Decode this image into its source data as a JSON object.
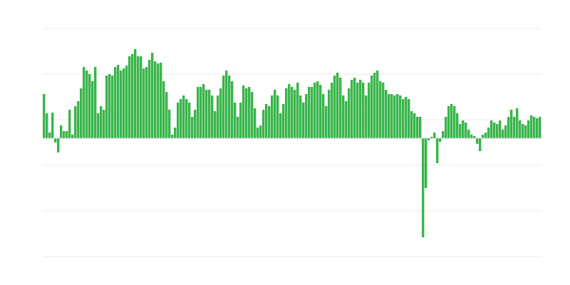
{
  "chart_data": {
    "type": "bar",
    "title": "",
    "xlabel": "",
    "ylabel": "",
    "ylim": [
      -166,
      154
    ],
    "gridlines": [
      -166,
      -102,
      -38,
      26,
      90,
      154
    ],
    "grid": true,
    "legend": "none",
    "colors": {
      "bar": "#39b54a",
      "grid": "#ebebeb",
      "baseline": "#cccccc"
    },
    "values": [
      62,
      35,
      8,
      36,
      -6,
      -20,
      18,
      10,
      10,
      40,
      5,
      45,
      52,
      70,
      100,
      95,
      90,
      80,
      100,
      35,
      45,
      40,
      88,
      90,
      88,
      100,
      103,
      95,
      98,
      102,
      115,
      118,
      125,
      115,
      115,
      98,
      100,
      110,
      120,
      108,
      105,
      106,
      80,
      65,
      40,
      5,
      15,
      50,
      55,
      60,
      55,
      50,
      30,
      40,
      72,
      72,
      76,
      68,
      68,
      60,
      38,
      60,
      70,
      88,
      95,
      88,
      80,
      50,
      30,
      50,
      74,
      70,
      72,
      65,
      42,
      15,
      18,
      40,
      48,
      45,
      60,
      68,
      60,
      35,
      48,
      70,
      76,
      72,
      68,
      78,
      60,
      50,
      62,
      72,
      72,
      78,
      80,
      75,
      62,
      45,
      68,
      78,
      88,
      92,
      85,
      60,
      52,
      70,
      82,
      85,
      78,
      82,
      78,
      60,
      78,
      88,
      92,
      95,
      80,
      78,
      68,
      62,
      62,
      60,
      62,
      60,
      55,
      58,
      55,
      38,
      35,
      30,
      30,
      -139,
      -70,
      -3,
      2,
      8,
      -35,
      -5,
      10,
      30,
      45,
      48,
      45,
      35,
      20,
      25,
      22,
      12,
      5,
      3,
      -8,
      -18,
      5,
      8,
      15,
      25,
      22,
      20,
      25,
      12,
      18,
      30,
      40,
      30,
      42,
      25,
      20,
      18,
      25,
      32,
      30,
      28,
      30
    ]
  }
}
